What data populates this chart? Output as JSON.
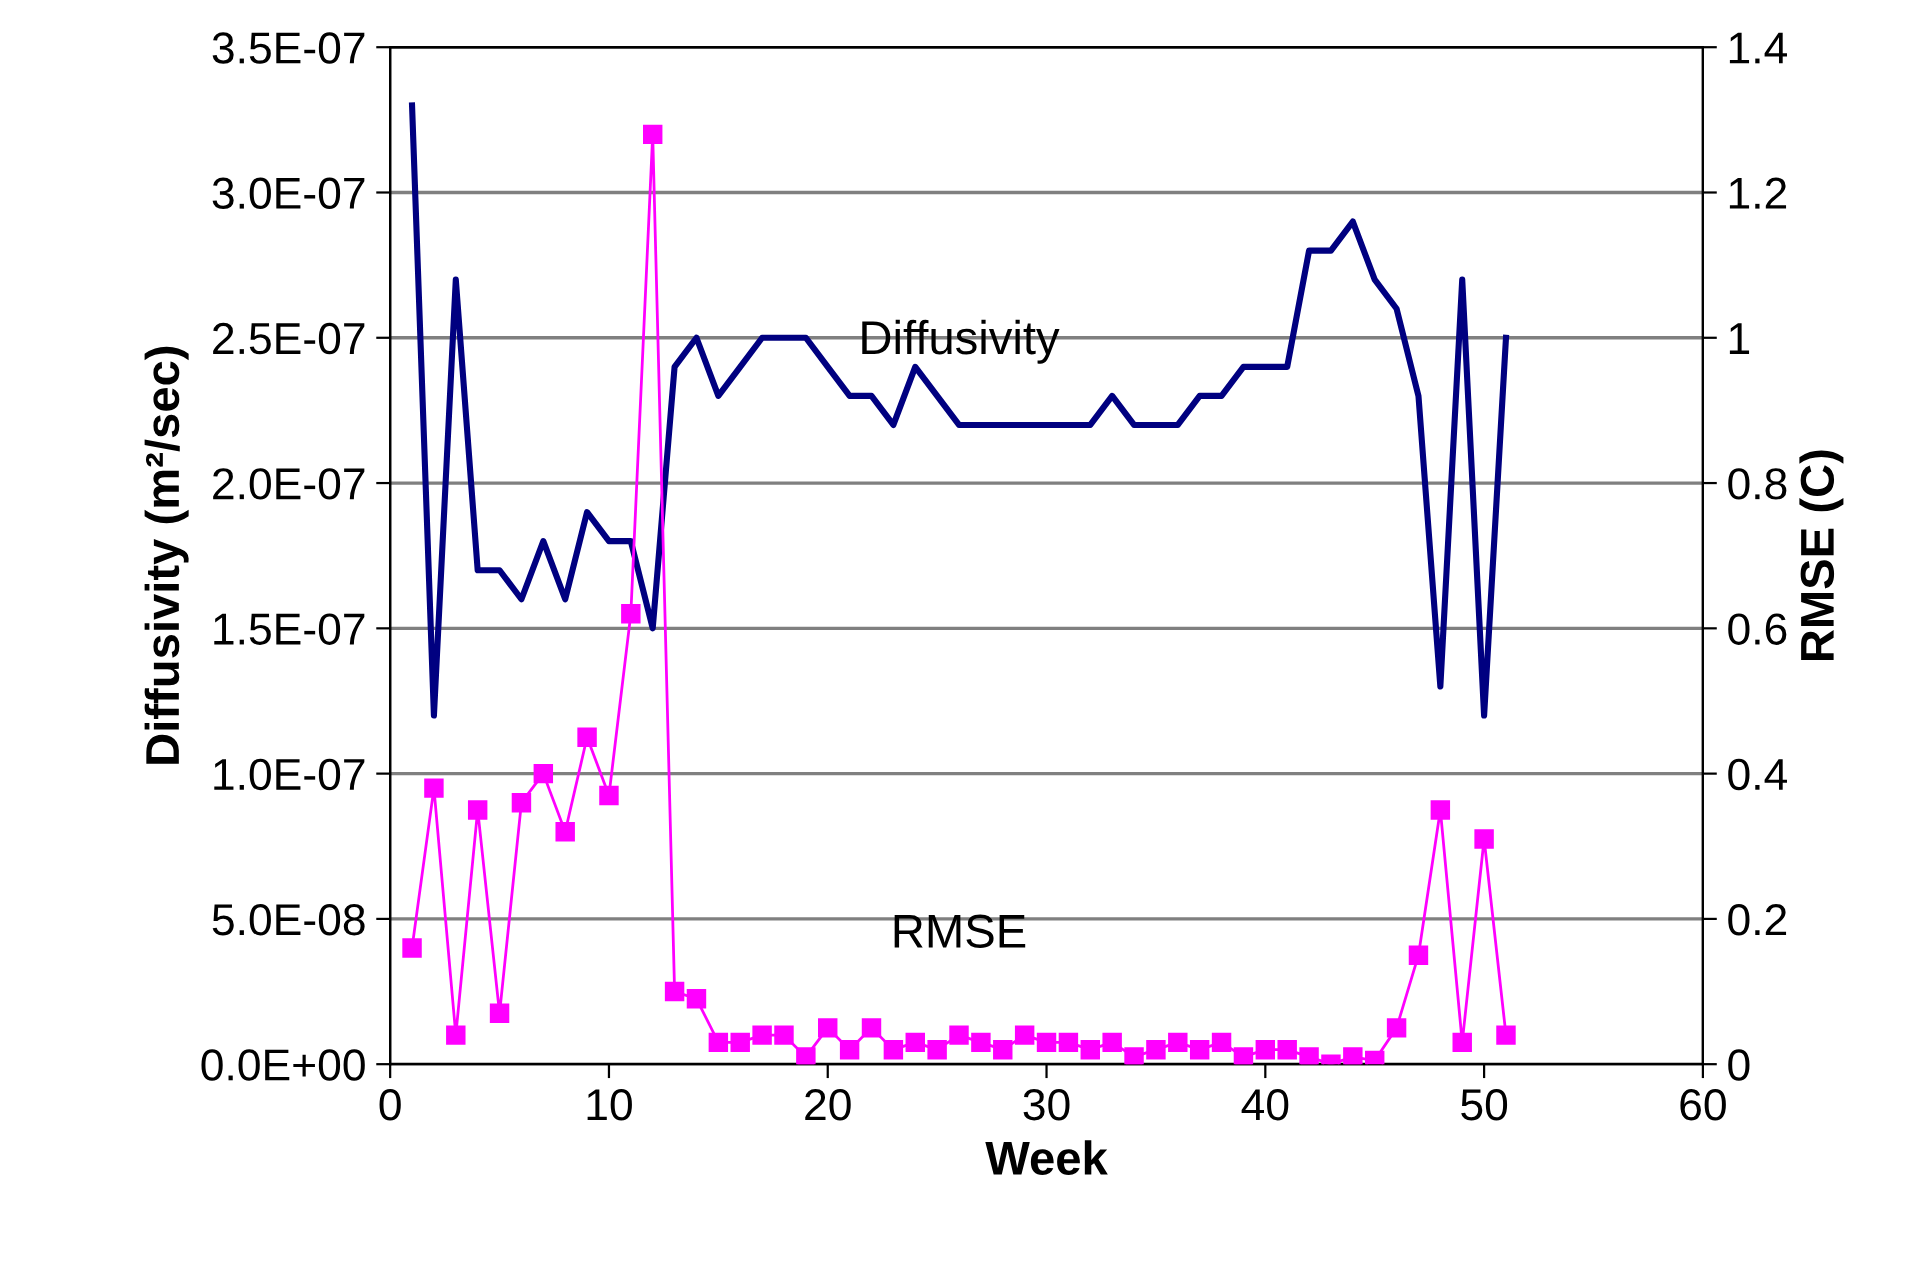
{
  "chart_data": {
    "type": "line",
    "xlabel": "Week",
    "ylabel": "Diffusivity (m²/sec)",
    "y2label": "RMSE (C)",
    "x": [
      1,
      2,
      3,
      4,
      5,
      6,
      7,
      8,
      9,
      10,
      11,
      12,
      13,
      14,
      15,
      16,
      17,
      18,
      19,
      20,
      21,
      22,
      23,
      24,
      25,
      26,
      27,
      28,
      29,
      30,
      31,
      32,
      33,
      34,
      35,
      36,
      37,
      38,
      39,
      40,
      41,
      42,
      43,
      44,
      45,
      46,
      47,
      48,
      49,
      50,
      51
    ],
    "series": [
      {
        "name": "Diffusivity",
        "color": "#000080",
        "marker": "none",
        "values": [
          3.3e-07,
          1.2e-07,
          2.7e-07,
          1.7e-07,
          1.7e-07,
          1.6e-07,
          1.8e-07,
          1.6e-07,
          1.9e-07,
          1.8e-07,
          1.8e-07,
          1.5e-07,
          2.4e-07,
          2.5e-07,
          2.3e-07,
          2.4e-07,
          2.5e-07,
          2.5e-07,
          2.5e-07,
          2.4e-07,
          2.3e-07,
          2.3e-07,
          2.2e-07,
          2.4e-07,
          2.3e-07,
          2.2e-07,
          2.2e-07,
          2.2e-07,
          2.2e-07,
          2.2e-07,
          2.2e-07,
          2.2e-07,
          2.3e-07,
          2.2e-07,
          2.2e-07,
          2.2e-07,
          2.3e-07,
          2.3e-07,
          2.4e-07,
          2.4e-07,
          2.4e-07,
          2.8e-07,
          2.8e-07,
          2.9e-07,
          2.7e-07,
          2.6e-07,
          2.3e-07,
          1.3e-07,
          2.7e-07,
          1.2e-07,
          2.5e-07
        ]
      },
      {
        "name": "RMSE",
        "color": "#ff00ff",
        "marker": "square",
        "axis": "y2",
        "values": [
          0.16,
          0.38,
          0.04,
          0.35,
          0.07,
          0.36,
          0.4,
          0.32,
          0.45,
          0.37,
          0.62,
          1.28,
          0.1,
          0.09,
          0.03,
          0.03,
          0.04,
          0.04,
          0.01,
          0.05,
          0.02,
          0.05,
          0.02,
          0.03,
          0.02,
          0.04,
          0.03,
          0.02,
          0.04,
          0.03,
          0.03,
          0.02,
          0.03,
          0.01,
          0.02,
          0.03,
          0.02,
          0.03,
          0.01,
          0.02,
          0.02,
          0.01,
          0,
          0.01,
          0.005,
          0.05,
          0.15,
          0.35,
          0.03,
          0.31,
          0.04
        ]
      }
    ],
    "xlim": [
      0,
      60
    ],
    "xticks": [
      0,
      10,
      20,
      30,
      40,
      50,
      60
    ],
    "ylim": [
      0,
      3.5e-07
    ],
    "yticks": [
      {
        "value": 0,
        "label": "0.0E+00"
      },
      {
        "value": 5e-08,
        "label": "5.0E-08"
      },
      {
        "value": 1e-07,
        "label": "1.0E-07"
      },
      {
        "value": 1.5e-07,
        "label": "1.5E-07"
      },
      {
        "value": 2e-07,
        "label": "2.0E-07"
      },
      {
        "value": 2.5e-07,
        "label": "2.5E-07"
      },
      {
        "value": 3e-07,
        "label": "3.0E-07"
      },
      {
        "value": 3.5e-07,
        "label": "3.5E-07"
      }
    ],
    "y2lim": [
      0,
      1.4
    ],
    "y2ticks": [
      0,
      0.2,
      0.4,
      0.6,
      0.8,
      1,
      1.2,
      1.4
    ],
    "grid": "y",
    "legend": false
  }
}
